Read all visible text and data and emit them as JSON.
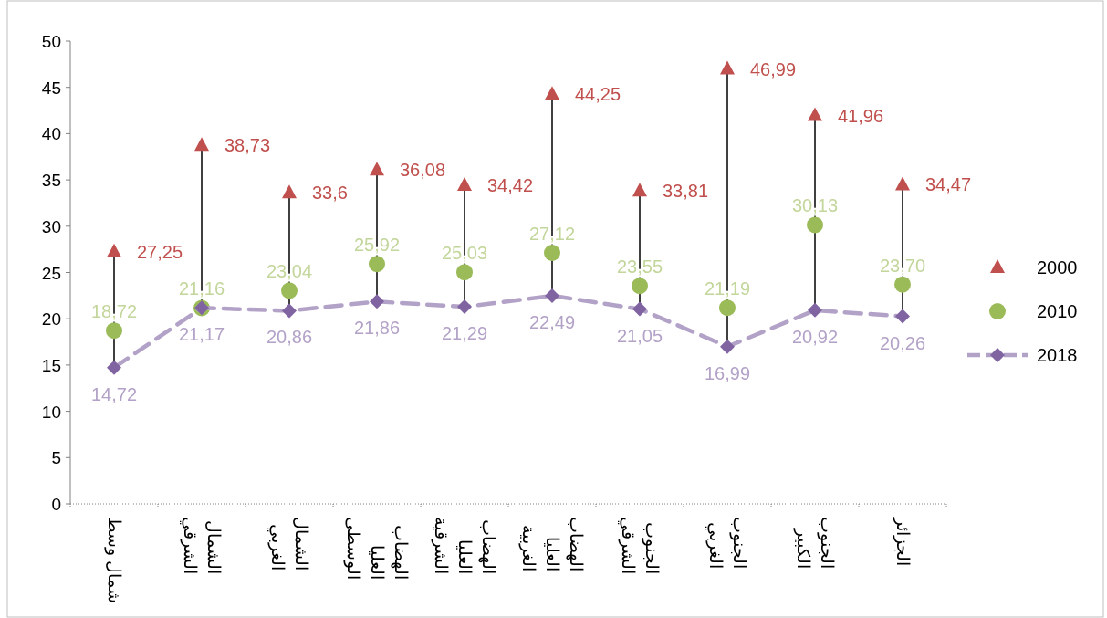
{
  "chart_data": {
    "type": "line",
    "categories": [
      "شمال وسط",
      "الشمال الشرقي",
      "الشمال الغربي",
      "الهضاب العليا الوسطى",
      "الهضاب العليا الشرقية",
      "الهضاب العليا الغربية",
      "الجنوب الشرقي",
      "الجنوب الغربي",
      "الجنوب الكبير",
      "الجزائر"
    ],
    "series": [
      {
        "name": "2000",
        "type": "scatter",
        "marker": "triangle",
        "color": "#c0504d",
        "values": [
          27.25,
          38.73,
          33.6,
          36.08,
          34.42,
          44.25,
          33.81,
          46.99,
          41.96,
          34.47
        ],
        "value_labels": [
          "27,25",
          "38,73",
          "33,6",
          "36,08",
          "34,42",
          "44,25",
          "33,81",
          "46,99",
          "41,96",
          "34,47"
        ]
      },
      {
        "name": "2010",
        "type": "scatter",
        "marker": "circle",
        "color": "#9bbb59",
        "values": [
          18.72,
          21.16,
          23.04,
          25.92,
          25.03,
          27.12,
          23.55,
          21.19,
          30.13,
          23.7
        ],
        "value_labels": [
          "18,72",
          "21,16",
          "23,04",
          "25,92",
          "25,03",
          "27,12",
          "23,55",
          "21,19",
          "30,13",
          "23,70"
        ]
      },
      {
        "name": "2018",
        "type": "line",
        "marker": "diamond",
        "line_style": "dashed",
        "color": "#8064a2",
        "values": [
          14.72,
          21.17,
          20.86,
          21.86,
          21.29,
          22.49,
          21.05,
          16.99,
          20.92,
          20.26
        ],
        "value_labels": [
          "14,72",
          "21,17",
          "20,86",
          "21,86",
          "21,29",
          "22,49",
          "21,05",
          "16,99",
          "20,92",
          "20,26"
        ]
      }
    ],
    "ylim": [
      0,
      50
    ],
    "yticks": [
      0,
      5,
      10,
      15,
      20,
      25,
      30,
      35,
      40,
      45,
      50
    ],
    "grid": false,
    "legend": "right"
  }
}
